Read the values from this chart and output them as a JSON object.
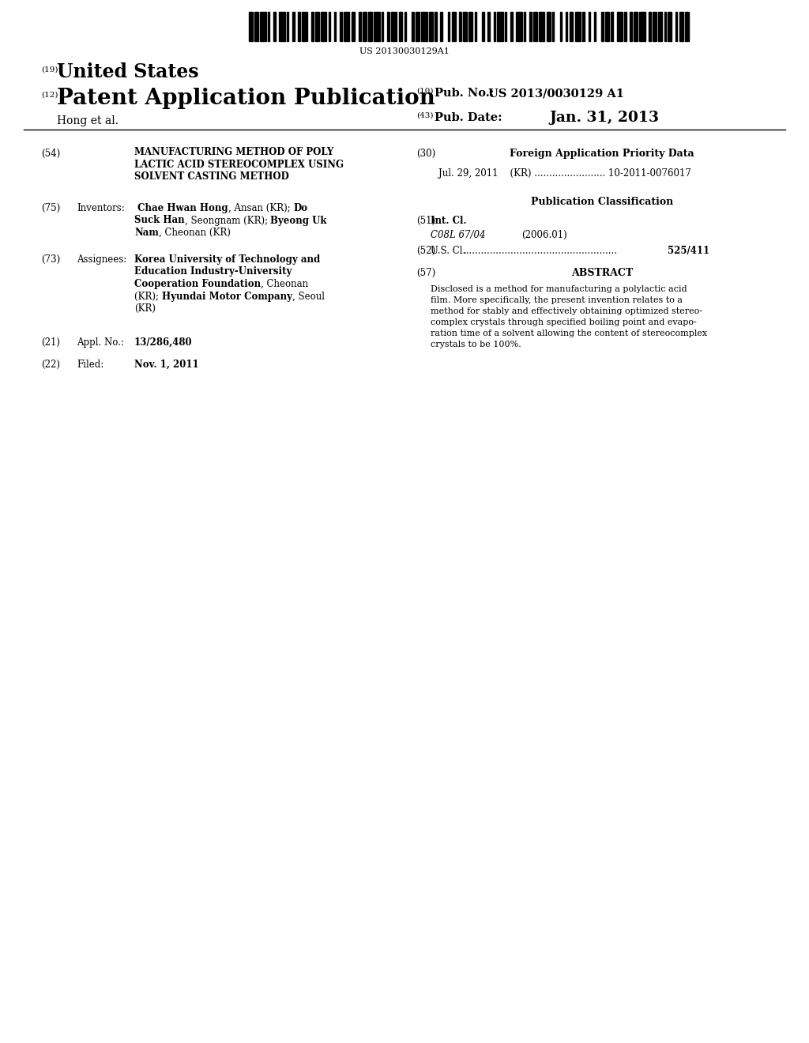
{
  "background_color": "#ffffff",
  "barcode_text": "US 20130030129A1",
  "header_19": "(19)",
  "header_19_text": "United States",
  "header_12": "(12)",
  "header_12_text": "Patent Application Publication",
  "header_10_num": "(10)",
  "header_10_pub_label": "Pub. No.:",
  "header_10_pub_value": "US 2013/0030129 A1",
  "author_line": "Hong et al.",
  "header_43_num": "(43)",
  "header_43_pub_label": "Pub. Date:",
  "header_43_pub_value": "Jan. 31, 2013",
  "section_54_num": "(54)",
  "section_54_title_lines": [
    "MANUFACTURING METHOD OF POLY",
    "LACTIC ACID STEREOCOMPLEX USING",
    "SOLVENT CASTING METHOD"
  ],
  "section_75_num": "(75)",
  "section_75_label": "Inventors:",
  "section_73_num": "(73)",
  "section_73_label": "Assignees:",
  "section_21_num": "(21)",
  "section_21_label": "Appl. No.:",
  "section_21_value": "13/286,480",
  "section_22_num": "(22)",
  "section_22_label": "Filed:",
  "section_22_value": "Nov. 1, 2011",
  "right_30_num": "(30)",
  "right_30_title": "Foreign Application Priority Data",
  "right_30_data": "Jul. 29, 2011    (KR) ........................ 10-2011-0076017",
  "right_pub_class": "Publication Classification",
  "right_51_num": "(51)",
  "right_51_label": "Int. Cl.",
  "right_51_class": "C08L 67/04",
  "right_51_year": "(2006.01)",
  "right_52_num": "(52)",
  "right_52_label": "U.S. Cl.",
  "right_52_dots": "....................................................",
  "right_52_value": "525/411",
  "right_57_num": "(57)",
  "right_57_title": "ABSTRACT",
  "right_57_abstract_lines": [
    "Disclosed is a method for manufacturing a polylactic acid",
    "film. More specifically, the present invention relates to a",
    "method for stably and effectively obtaining optimized stereo-",
    "complex crystals through specified boiling point and evapo-",
    "ration time of a solvent allowing the content of stereocomplex",
    "crystals to be 100%."
  ],
  "inv_lines": [
    [
      [
        " Chae Hwan Hong",
        true
      ],
      [
        ", Ansan (KR); ",
        false
      ],
      [
        "Do",
        true
      ]
    ],
    [
      [
        "Suck Han",
        true
      ],
      [
        ", Seongnam (KR); ",
        false
      ],
      [
        "Byeong Uk",
        true
      ]
    ],
    [
      [
        "Nam",
        true
      ],
      [
        ", Cheonan (KR)",
        false
      ]
    ]
  ],
  "asgn_lines": [
    [
      [
        "Korea University of Technology and",
        true
      ]
    ],
    [
      [
        "Education Industry-University",
        true
      ]
    ],
    [
      [
        "Cooperation Foundation",
        true
      ],
      [
        ", Cheonan",
        false
      ]
    ],
    [
      [
        "(KR); ",
        false
      ],
      [
        "Hyundai Motor Company",
        true
      ],
      [
        ", Seoul",
        false
      ]
    ],
    [
      [
        "(KR)",
        false
      ]
    ]
  ]
}
